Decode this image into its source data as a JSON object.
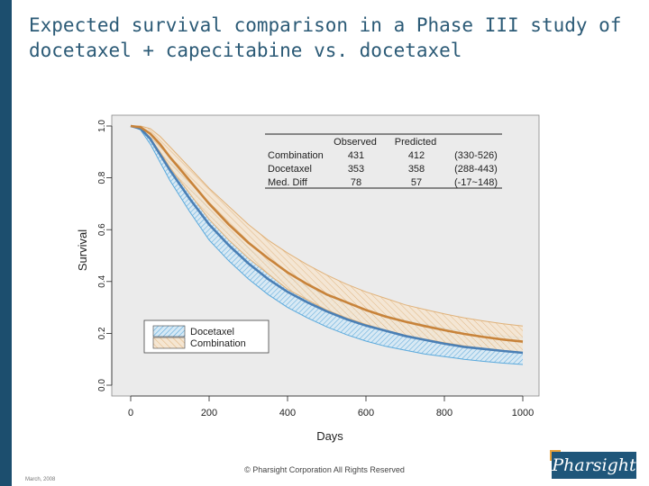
{
  "slide": {
    "title_line1": "Expected survival comparison in a Phase III study of",
    "title_line2": "docetaxel + capecitabine vs. docetaxel",
    "copyright": "© Pharsight Corporation All Rights Reserved",
    "date": "March, 2008",
    "logo_text": "Pharsight"
  },
  "colors": {
    "title": "#2b5a76",
    "sidebar": "#1c4e6e",
    "docetaxel": "#4a7fb5",
    "docetaxel_band": "#5aa9dc",
    "combination": "#c8833a",
    "combination_band": "#e0b27a",
    "plot_bg": "#ebebeb"
  },
  "chart_data": {
    "type": "line",
    "title": "",
    "xlabel": "Days",
    "ylabel": "Survival",
    "xlim": [
      0,
      1000
    ],
    "ylim": [
      0,
      1.0
    ],
    "x_ticks": [
      0,
      200,
      400,
      600,
      800,
      1000
    ],
    "x_tick_labels": [
      "0",
      "200",
      "400",
      "600",
      "800",
      "1000"
    ],
    "y_ticks": [
      0.0,
      0.2,
      0.4,
      0.6,
      0.8,
      1.0
    ],
    "y_tick_labels": [
      "0.0",
      "0.2",
      "0.4",
      "0.6",
      "0.8",
      "1.0"
    ],
    "x": [
      0,
      25,
      50,
      75,
      100,
      150,
      200,
      250,
      300,
      350,
      400,
      450,
      500,
      550,
      600,
      650,
      700,
      750,
      800,
      850,
      900,
      950,
      1000
    ],
    "series": [
      {
        "name": "Docetaxel",
        "median": [
          1.0,
          0.99,
          0.95,
          0.89,
          0.83,
          0.72,
          0.62,
          0.54,
          0.47,
          0.41,
          0.36,
          0.32,
          0.285,
          0.255,
          0.23,
          0.21,
          0.19,
          0.175,
          0.16,
          0.148,
          0.14,
          0.132,
          0.125
        ],
        "lower": [
          1.0,
          0.985,
          0.93,
          0.86,
          0.79,
          0.67,
          0.56,
          0.48,
          0.41,
          0.35,
          0.3,
          0.26,
          0.225,
          0.195,
          0.17,
          0.15,
          0.135,
          0.12,
          0.11,
          0.1,
          0.092,
          0.085,
          0.08
        ],
        "upper": [
          1.0,
          0.995,
          0.97,
          0.92,
          0.87,
          0.77,
          0.68,
          0.6,
          0.53,
          0.47,
          0.42,
          0.38,
          0.345,
          0.315,
          0.29,
          0.27,
          0.25,
          0.235,
          0.22,
          0.208,
          0.198,
          0.19,
          0.183
        ]
      },
      {
        "name": "Combination",
        "median": [
          1.0,
          0.995,
          0.97,
          0.93,
          0.88,
          0.79,
          0.7,
          0.62,
          0.55,
          0.49,
          0.435,
          0.39,
          0.35,
          0.32,
          0.29,
          0.265,
          0.245,
          0.228,
          0.212,
          0.198,
          0.186,
          0.176,
          0.168
        ],
        "lower": [
          1.0,
          0.99,
          0.95,
          0.9,
          0.84,
          0.74,
          0.64,
          0.56,
          0.49,
          0.43,
          0.37,
          0.33,
          0.29,
          0.26,
          0.235,
          0.212,
          0.193,
          0.178,
          0.164,
          0.152,
          0.142,
          0.134,
          0.127
        ],
        "upper": [
          1.0,
          1.0,
          0.99,
          0.96,
          0.92,
          0.84,
          0.76,
          0.69,
          0.62,
          0.56,
          0.51,
          0.465,
          0.425,
          0.39,
          0.36,
          0.335,
          0.31,
          0.292,
          0.275,
          0.26,
          0.248,
          0.237,
          0.228
        ]
      }
    ],
    "legend": {
      "entries": [
        "Docetaxel",
        "Combination"
      ],
      "placement": "bottom-left"
    },
    "table": {
      "headers": [
        "",
        "Observed",
        "Predicted",
        ""
      ],
      "rows": [
        [
          "Combination",
          "431",
          "412",
          "(330-526)"
        ],
        [
          "Docetaxel",
          "353",
          "358",
          "(288-443)"
        ],
        [
          "Med. Diff",
          "78",
          "57",
          "(-17~148)"
        ]
      ],
      "placement": "top-right"
    }
  }
}
